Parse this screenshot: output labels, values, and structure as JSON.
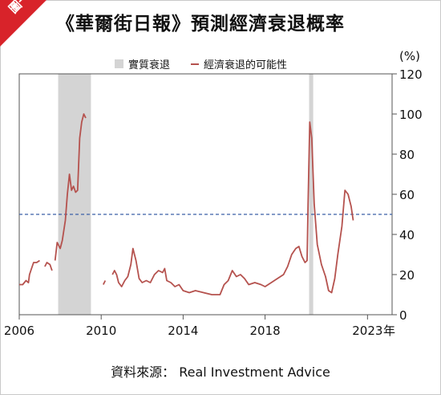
{
  "badge": "圖一",
  "title": "《華爾街日報》預測經濟衰退概率",
  "source": "資料來源： Real Investment Advice",
  "chart_data": {
    "type": "line",
    "unit": "(%)",
    "x_suffix": "年",
    "xlim": [
      2006,
      2024.2
    ],
    "ylim": [
      0,
      120
    ],
    "y_ticks": [
      0,
      20,
      40,
      60,
      80,
      100,
      120
    ],
    "x_ticks": [
      {
        "value": 2006,
        "label": "2006"
      },
      {
        "value": 2010,
        "label": "2010"
      },
      {
        "value": 2014,
        "label": "2014"
      },
      {
        "value": 2018,
        "label": "2018"
      },
      {
        "value": 2023,
        "label": "2023"
      }
    ],
    "reference_line": 50,
    "recessions": [
      {
        "start": 2007.9,
        "end": 2009.5
      },
      {
        "start": 2020.15,
        "end": 2020.35
      }
    ],
    "legend": [
      {
        "label": "實質衰退",
        "kind": "shade",
        "color": "#d4d4d4"
      },
      {
        "label": "經濟衰退的可能性",
        "kind": "line",
        "color": "#b5524e"
      }
    ],
    "series": [
      {
        "color": "#b5524e",
        "segments": [
          [
            [
              2006.0,
              15
            ],
            [
              2006.17,
              15
            ],
            [
              2006.33,
              17
            ],
            [
              2006.45,
              16
            ],
            [
              2006.5,
              20
            ],
            [
              2006.6,
              23
            ],
            [
              2006.7,
              26
            ],
            [
              2006.85,
              26
            ],
            [
              2007.0,
              27
            ]
          ],
          [
            [
              2007.25,
              24
            ],
            [
              2007.35,
              26
            ],
            [
              2007.5,
              25
            ],
            [
              2007.6,
              22
            ]
          ],
          [
            [
              2007.75,
              27
            ],
            [
              2007.85,
              36
            ],
            [
              2008.0,
              33
            ],
            [
              2008.1,
              37
            ],
            [
              2008.25,
              47
            ],
            [
              2008.35,
              60
            ],
            [
              2008.45,
              70
            ],
            [
              2008.55,
              62
            ],
            [
              2008.65,
              64
            ],
            [
              2008.75,
              61
            ],
            [
              2008.85,
              62
            ],
            [
              2008.95,
              88
            ],
            [
              2009.05,
              96
            ],
            [
              2009.15,
              100
            ],
            [
              2009.25,
              98
            ]
          ],
          [
            [
              2010.1,
              15
            ],
            [
              2010.2,
              17
            ]
          ],
          [
            [
              2010.55,
              20
            ],
            [
              2010.65,
              22
            ],
            [
              2010.75,
              20
            ],
            [
              2010.85,
              16
            ],
            [
              2011.0,
              14
            ],
            [
              2011.15,
              17
            ],
            [
              2011.3,
              19
            ],
            [
              2011.45,
              25
            ],
            [
              2011.55,
              33
            ],
            [
              2011.7,
              27
            ],
            [
              2011.85,
              18
            ],
            [
              2012.0,
              16
            ],
            [
              2012.2,
              17
            ],
            [
              2012.4,
              16
            ],
            [
              2012.6,
              20
            ],
            [
              2012.8,
              22
            ],
            [
              2013.0,
              21
            ],
            [
              2013.1,
              23
            ],
            [
              2013.2,
              17
            ],
            [
              2013.4,
              16
            ],
            [
              2013.6,
              14
            ],
            [
              2013.8,
              15
            ],
            [
              2014.0,
              12
            ],
            [
              2014.3,
              11
            ],
            [
              2014.6,
              12
            ],
            [
              2015.0,
              11
            ],
            [
              2015.4,
              10
            ],
            [
              2015.8,
              10
            ],
            [
              2016.0,
              15
            ],
            [
              2016.2,
              17
            ],
            [
              2016.4,
              22
            ],
            [
              2016.6,
              19
            ],
            [
              2016.8,
              20
            ],
            [
              2017.0,
              18
            ],
            [
              2017.2,
              15
            ],
            [
              2017.5,
              16
            ],
            [
              2017.8,
              15
            ],
            [
              2018.0,
              14
            ],
            [
              2018.3,
              16
            ],
            [
              2018.6,
              18
            ],
            [
              2018.9,
              20
            ],
            [
              2019.1,
              24
            ],
            [
              2019.3,
              30
            ],
            [
              2019.5,
              33
            ],
            [
              2019.65,
              34
            ],
            [
              2019.8,
              29
            ],
            [
              2019.95,
              26
            ],
            [
              2020.05,
              27
            ],
            [
              2020.1,
              55
            ],
            [
              2020.18,
              96
            ],
            [
              2020.28,
              88
            ],
            [
              2020.4,
              55
            ],
            [
              2020.55,
              35
            ],
            [
              2020.75,
              25
            ],
            [
              2020.95,
              19
            ],
            [
              2021.1,
              12
            ],
            [
              2021.25,
              11
            ],
            [
              2021.4,
              18
            ],
            [
              2021.55,
              30
            ],
            [
              2021.75,
              44
            ],
            [
              2021.9,
              62
            ],
            [
              2022.05,
              60
            ],
            [
              2022.2,
              54
            ],
            [
              2022.3,
              47
            ]
          ]
        ]
      }
    ]
  }
}
